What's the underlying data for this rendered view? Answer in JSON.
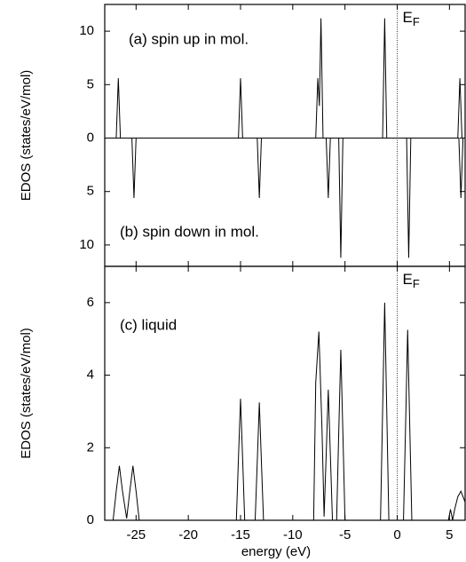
{
  "chart_data": [
    {
      "type": "line",
      "ylabel": "EDOS  (states/eV/mol)",
      "annotations": [
        "(a) spin up in mol.",
        "(b) spin down in mol."
      ],
      "ef_label": "E",
      "ef_sub": "F",
      "vline": 0,
      "xlim": [
        -28,
        6.5
      ],
      "ylim": [
        -12,
        12.5
      ],
      "yticks": [
        {
          "value": -10,
          "label": "10"
        },
        {
          "value": -5,
          "label": "5"
        },
        0,
        5,
        10
      ],
      "series": [
        {
          "color": "#000000",
          "x": [
            -28,
            -26.9,
            -26.7,
            -26.5,
            -15.2,
            -15,
            -14.8,
            -7.8,
            -7.6,
            -7.45,
            -7.3,
            -7.1,
            -1.4,
            -1.2,
            -1.0,
            5.8,
            6.0,
            6.2,
            6.5
          ],
          "values": [
            0,
            0,
            5.6,
            0,
            0,
            5.6,
            0,
            0,
            5.6,
            3,
            11.2,
            0,
            0,
            11.2,
            0,
            0,
            5.6,
            0,
            0
          ]
        },
        {
          "color": "#000000",
          "x": [
            -28,
            -25.4,
            -25.2,
            -25,
            -13.4,
            -13.2,
            -13,
            -6.8,
            -6.6,
            -6.4,
            -5.6,
            -5.4,
            -5.2,
            0.9,
            1.1,
            1.3,
            5.9,
            6.1,
            6.3
          ],
          "values": [
            0,
            0,
            -5.6,
            0,
            0,
            -5.6,
            0,
            0,
            -5.6,
            0,
            0,
            -11.2,
            0,
            0,
            -11.2,
            0,
            0,
            -5.6,
            0
          ]
        }
      ]
    },
    {
      "type": "line",
      "ylabel": "EDOS  (states/eV/mol)",
      "xlabel": "energy  (eV)",
      "annotations": [
        "(c) liquid"
      ],
      "ef_label": "E",
      "ef_sub": "F",
      "vline": 0,
      "xlim": [
        -28,
        6.5
      ],
      "ylim": [
        0,
        7
      ],
      "xticks": [
        -25,
        -20,
        -15,
        -10,
        -5,
        0,
        5
      ],
      "yticks": [
        0,
        2,
        4,
        6
      ],
      "series": [
        {
          "color": "#000000",
          "x": [
            -28,
            -27.2,
            -26.9,
            -26.6,
            -26.3,
            -25.9,
            -25.6,
            -25.3,
            -25.0,
            -24.7,
            -15.4,
            -15.2,
            -15.0,
            -14.8,
            -14.6,
            -13.6,
            -13.4,
            -13.2,
            -13.0,
            -12.8,
            -8.0,
            -7.8,
            -7.5,
            -7.2,
            -7.0,
            -6.8,
            -6.6,
            -6.4,
            -6.2,
            -5.8,
            -5.6,
            -5.4,
            -5.2,
            -5.0,
            -1.6,
            -1.4,
            -1.2,
            -1.0,
            -0.8,
            0.6,
            0.8,
            1.0,
            1.2,
            1.4,
            4.9,
            5.1,
            5.3,
            5.5,
            5.8,
            6.1,
            6.5
          ],
          "values": [
            0,
            0,
            0.8,
            1.5,
            0.8,
            0.05,
            0.8,
            1.5,
            0.8,
            0,
            0,
            1.7,
            3.35,
            1.7,
            0,
            0,
            1.6,
            3.25,
            1.6,
            0,
            0,
            3.8,
            5.2,
            2.5,
            0.1,
            1.8,
            3.6,
            1.8,
            0,
            0,
            2.4,
            4.7,
            2.4,
            0,
            0,
            3,
            6.0,
            3,
            0,
            0,
            2.6,
            5.25,
            2.6,
            0,
            0,
            0.3,
            0,
            0.3,
            0.65,
            0.8,
            0.5
          ]
        }
      ]
    }
  ]
}
